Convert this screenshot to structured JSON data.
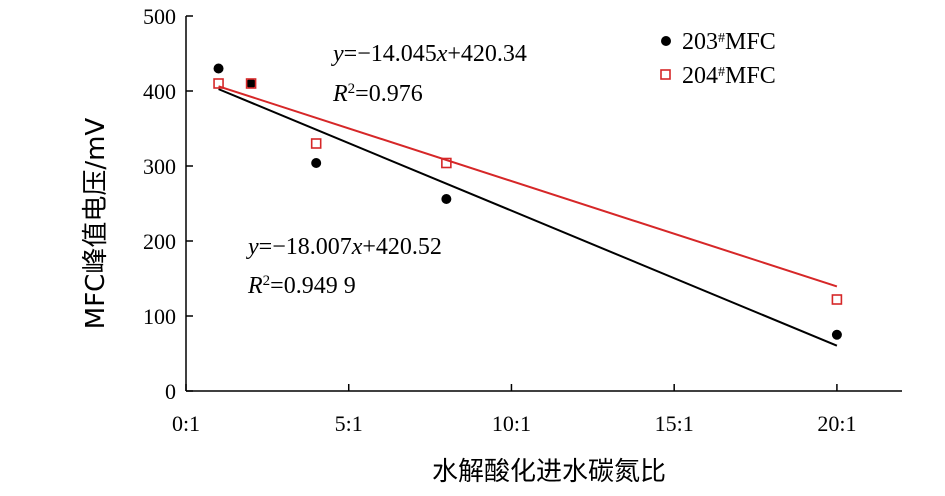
{
  "chart_data": {
    "type": "scatter",
    "xlabel": "水解酸化进水碳氮比",
    "ylabel": "MFC峰值电压/mV",
    "xlim": [
      0,
      22
    ],
    "ylim": [
      0,
      500
    ],
    "x_ticks": [
      0,
      5,
      10,
      15,
      20
    ],
    "x_tick_labels": [
      "0:1",
      "5:1",
      "10:1",
      "15:1",
      "20:1"
    ],
    "y_ticks": [
      0,
      100,
      200,
      300,
      400,
      500
    ],
    "y_tick_labels": [
      "0",
      "100",
      "200",
      "300",
      "400",
      "500"
    ],
    "legend_position": "top-right",
    "series": [
      {
        "name_prefix": "203",
        "name_sup": "#",
        "name_suffix": "MFC",
        "marker": "filled-circle",
        "color": "#000000",
        "x": [
          1,
          2,
          4,
          8,
          20
        ],
        "y": [
          430,
          410,
          304,
          256,
          75
        ],
        "fit": {
          "slope": -18.007,
          "intercept": 420.52,
          "x_range": [
            1,
            20
          ]
        },
        "equation_y_part": "y",
        "equation_rest": "=−18.007",
        "equation_x_part": "x",
        "equation_tail": "+420.52",
        "r2_label": "R",
        "r2_sup": "2",
        "r2_value": "=0.949 9"
      },
      {
        "name_prefix": "204",
        "name_sup": "#",
        "name_suffix": "MFC",
        "marker": "open-square",
        "color": "#d62728",
        "x": [
          1,
          2,
          4,
          8,
          20
        ],
        "y": [
          410,
          410,
          330,
          304,
          122
        ],
        "fit": {
          "slope": -14.045,
          "intercept": 420.34,
          "x_range": [
            1,
            20
          ]
        },
        "equation_y_part": "y",
        "equation_rest": "=−14.045",
        "equation_x_part": "x",
        "equation_tail": "+420.34",
        "r2_label": "R",
        "r2_sup": "2",
        "r2_value": "=0.976"
      }
    ]
  }
}
